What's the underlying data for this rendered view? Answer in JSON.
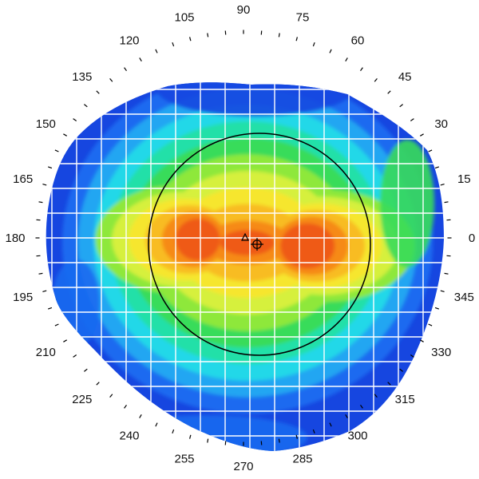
{
  "map": {
    "colors": {
      "background": "#ffffff",
      "grid": "#ffffff",
      "ticks": "#000000",
      "circle": "#000000",
      "scale": [
        "#1646e0",
        "#1a6af0",
        "#22a6f2",
        "#20d8e8",
        "#20e0a8",
        "#38dc5a",
        "#8ee83a",
        "#d6f03c",
        "#f6e62e",
        "#f8bc22",
        "#f68a18",
        "#ef5a14"
      ]
    },
    "markers": {
      "triangle": "triangle-marker",
      "crosshair": "crosshair-marker"
    },
    "angle_labels": [
      {
        "deg": 0,
        "label": "0"
      },
      {
        "deg": 15,
        "label": "15"
      },
      {
        "deg": 30,
        "label": "30"
      },
      {
        "deg": 45,
        "label": "45"
      },
      {
        "deg": 60,
        "label": "60"
      },
      {
        "deg": 75,
        "label": "75"
      },
      {
        "deg": 90,
        "label": "90"
      },
      {
        "deg": 105,
        "label": "105"
      },
      {
        "deg": 120,
        "label": "120"
      },
      {
        "deg": 135,
        "label": "135"
      },
      {
        "deg": 150,
        "label": "150"
      },
      {
        "deg": 165,
        "label": "165"
      },
      {
        "deg": 180,
        "label": "180"
      },
      {
        "deg": 195,
        "label": "195"
      },
      {
        "deg": 210,
        "label": "210"
      },
      {
        "deg": 225,
        "label": "225"
      },
      {
        "deg": 240,
        "label": "240"
      },
      {
        "deg": 255,
        "label": "255"
      },
      {
        "deg": 270,
        "label": "270"
      },
      {
        "deg": 285,
        "label": "285"
      },
      {
        "deg": 300,
        "label": "300"
      },
      {
        "deg": 315,
        "label": "315"
      },
      {
        "deg": 330,
        "label": "330"
      },
      {
        "deg": 345,
        "label": "345"
      }
    ]
  }
}
